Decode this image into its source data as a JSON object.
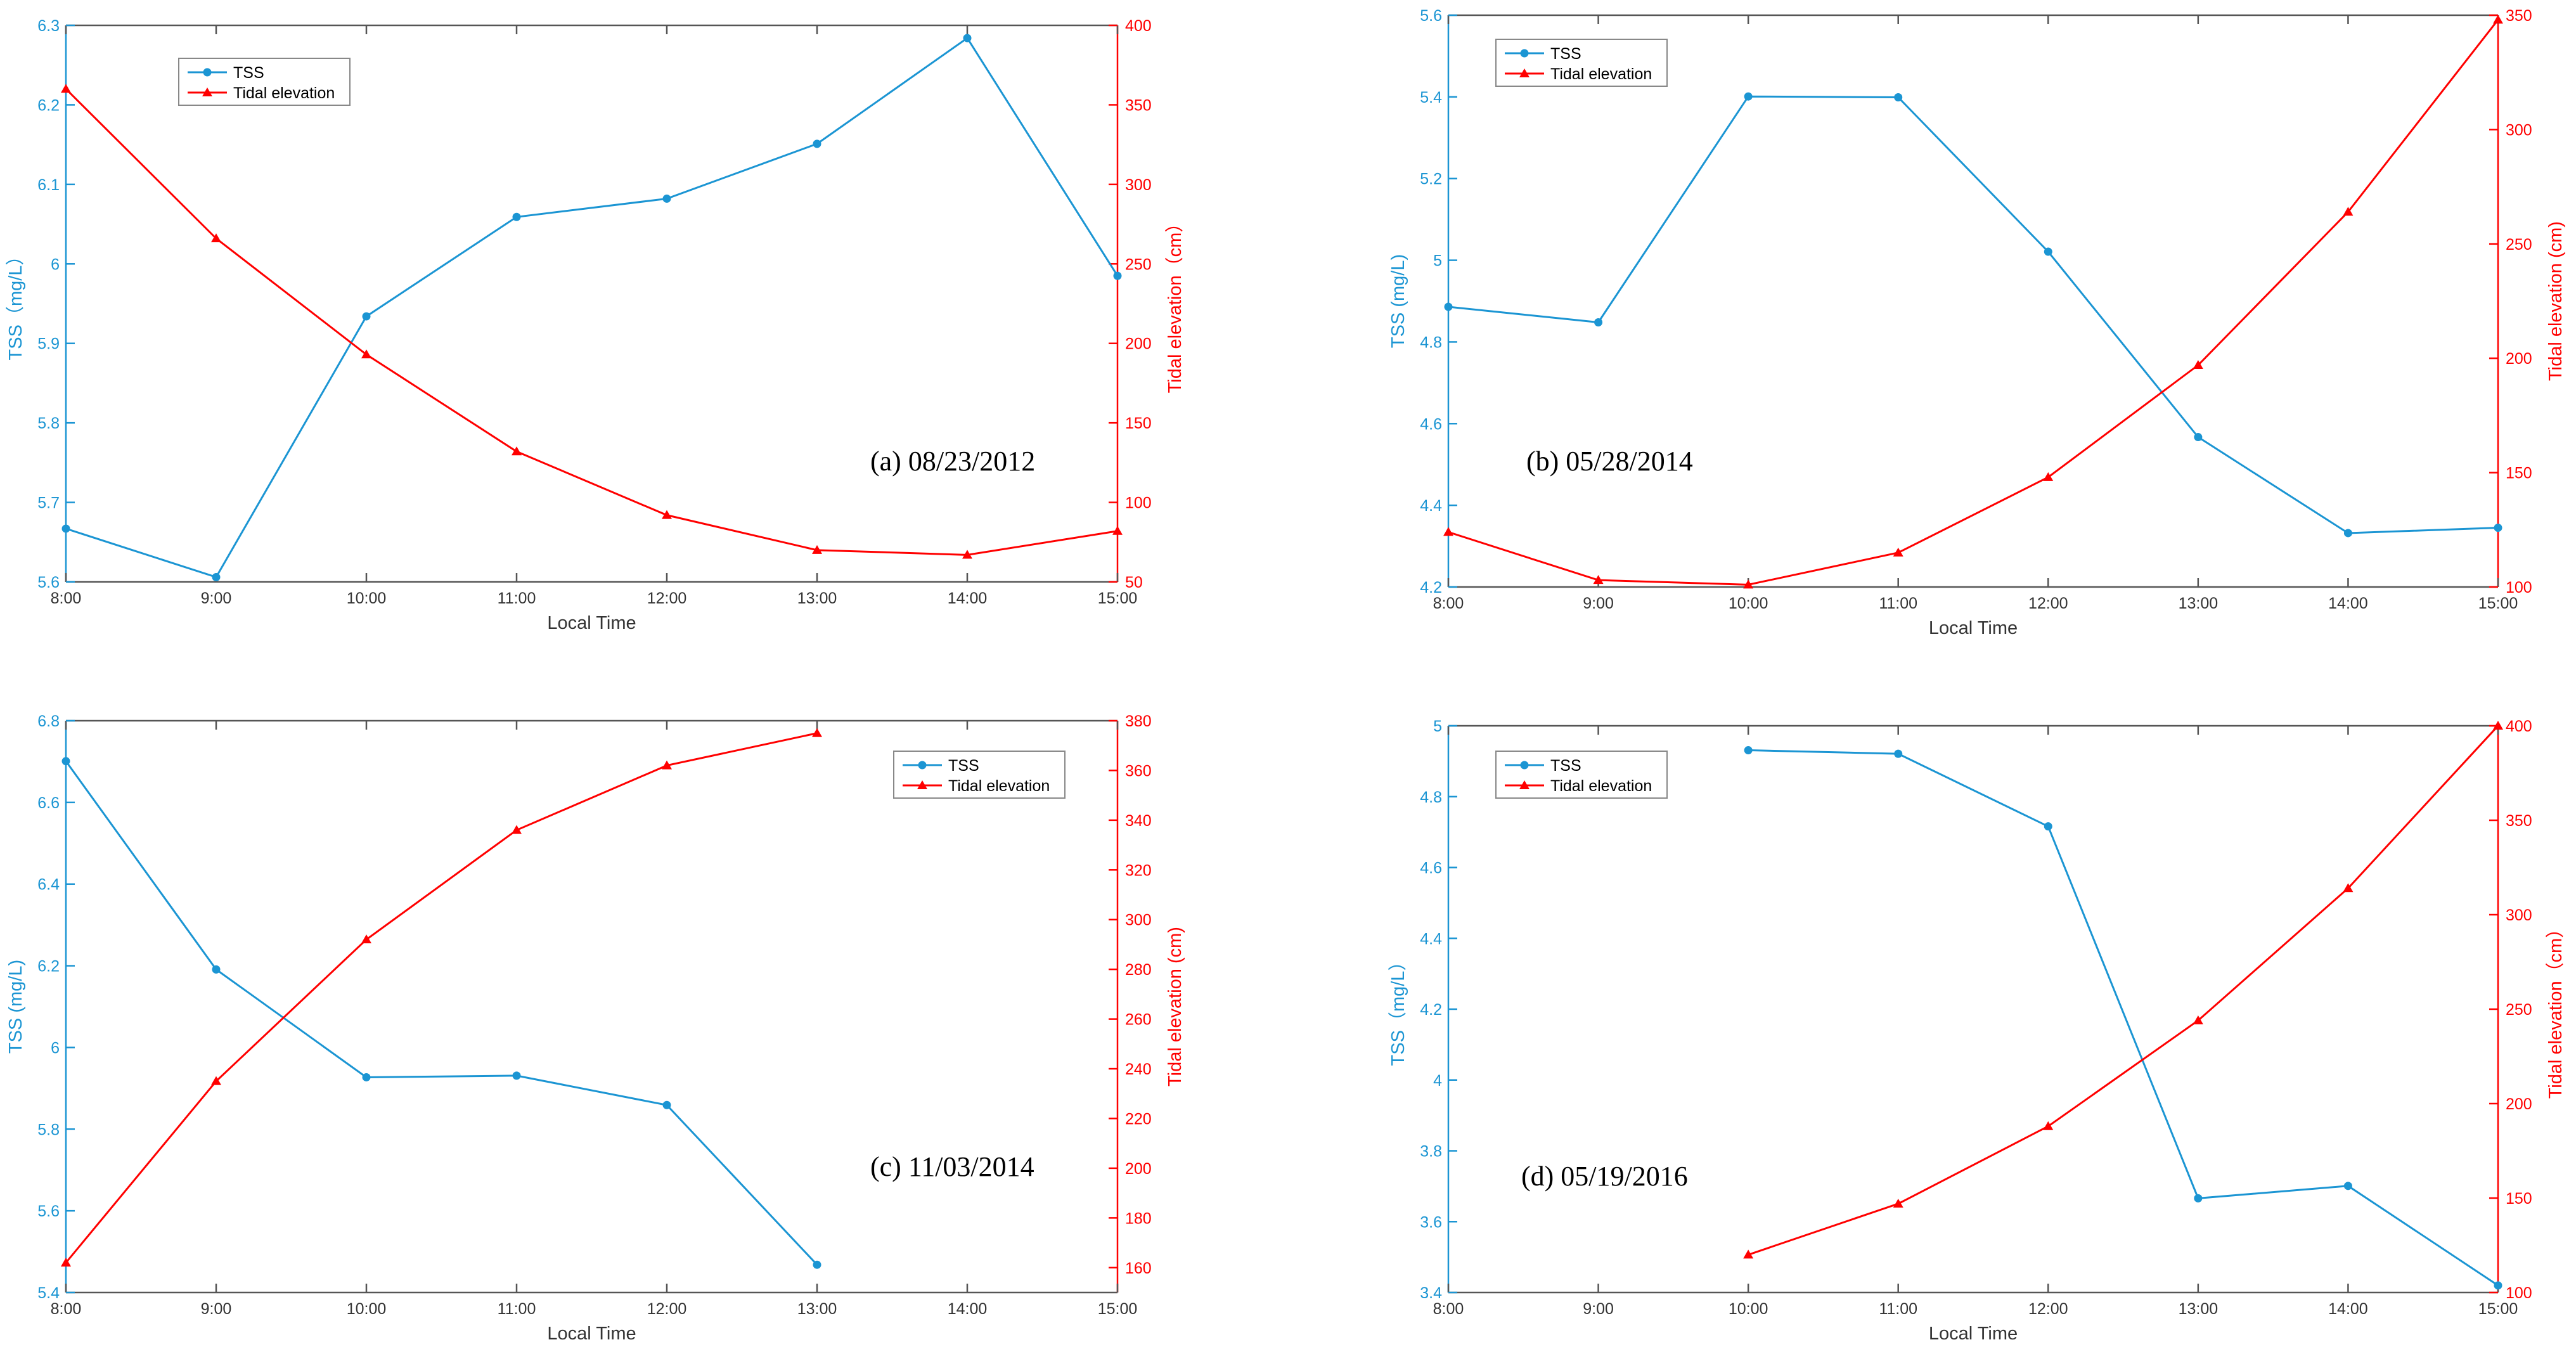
{
  "figure": {
    "colors": {
      "tss": "#1b95d3",
      "tide": "#ff0000",
      "axis": "#555555",
      "text": "#333333"
    }
  },
  "chart_data": [
    {
      "type": "line",
      "title": "(a) 08/23/2012",
      "xlabel": "Local Time",
      "ylabel_left": "TSS（mg/L）",
      "ylabel_right": "Tidal elevation（cm）",
      "x_ticks": [
        "8:00",
        "9:00",
        "10:00",
        "11:00",
        "12:00",
        "13:00",
        "14:00",
        "15:00"
      ],
      "y_left_range": [
        5.6,
        6.3
      ],
      "y_left_ticks": [
        "5.6",
        "5.7",
        "5.8",
        "5.9",
        "6",
        "6.1",
        "6.2",
        "6.3"
      ],
      "y_right_range": [
        50,
        400
      ],
      "y_right_ticks": [
        "50",
        "100",
        "150",
        "200",
        "250",
        "300",
        "350",
        "400"
      ],
      "legend_position": "top-left",
      "series": [
        {
          "name": "TSS",
          "axis": "left",
          "marker": "circle",
          "values": [
            5.667,
            5.606,
            5.934,
            6.059,
            6.082,
            6.151,
            6.284,
            5.985
          ]
        },
        {
          "name": "Tidal elevation",
          "axis": "right",
          "marker": "triangle",
          "values": [
            360,
            266,
            193,
            132,
            92,
            70,
            67,
            82
          ]
        }
      ]
    },
    {
      "type": "line",
      "title": "(b) 05/28/2014",
      "xlabel": "Local Time",
      "ylabel_left": "TSS (mg/L)",
      "ylabel_right": "Tidal elevation (cm)",
      "x_ticks": [
        "8:00",
        "9:00",
        "10:00",
        "11:00",
        "12:00",
        "13:00",
        "14:00",
        "15:00"
      ],
      "y_left_range": [
        4.2,
        5.6
      ],
      "y_left_ticks": [
        "4.2",
        "4.4",
        "4.6",
        "4.8",
        "5",
        "5.2",
        "5.4",
        "5.6"
      ],
      "y_right_range": [
        100,
        350
      ],
      "y_right_ticks": [
        "100",
        "150",
        "200",
        "250",
        "300",
        "350"
      ],
      "legend_position": "top-left",
      "series": [
        {
          "name": "TSS",
          "axis": "left",
          "marker": "circle",
          "values": [
            4.886,
            4.848,
            5.401,
            5.399,
            5.021,
            4.567,
            4.332,
            4.345
          ]
        },
        {
          "name": "Tidal elevation",
          "axis": "right",
          "marker": "triangle",
          "values": [
            124,
            103,
            101,
            115,
            148,
            197,
            264,
            348
          ]
        }
      ]
    },
    {
      "type": "line",
      "title": "(c) 11/03/2014",
      "xlabel": "Local Time",
      "ylabel_left": "TSS (mg/L)",
      "ylabel_right": "Tidal elevation (cm)",
      "x_ticks": [
        "8:00",
        "9:00",
        "10:00",
        "11:00",
        "12:00",
        "13:00",
        "14:00",
        "15:00"
      ],
      "y_left_range": [
        5.4,
        6.8
      ],
      "y_left_ticks": [
        "5.4",
        "5.6",
        "5.8",
        "6",
        "6.2",
        "6.4",
        "6.6",
        "6.8"
      ],
      "y_right_range": [
        150,
        380
      ],
      "y_right_ticks": [
        "160",
        "180",
        "200",
        "220",
        "240",
        "260",
        "280",
        "300",
        "320",
        "340",
        "360",
        "380"
      ],
      "legend_position": "top-right",
      "series": [
        {
          "name": "TSS",
          "axis": "left",
          "marker": "circle",
          "values": [
            6.701,
            6.191,
            5.927,
            5.931,
            5.859,
            5.468
          ]
        },
        {
          "name": "Tidal elevation",
          "axis": "right",
          "marker": "triangle",
          "values": [
            162,
            235,
            292,
            336,
            362,
            375
          ]
        }
      ]
    },
    {
      "type": "line",
      "title": "(d) 05/19/2016",
      "xlabel": "Local Time",
      "ylabel_left": "TSS（mg/L）",
      "ylabel_right": "Tidal elevation（cm）",
      "x_ticks": [
        "8:00",
        "9:00",
        "10:00",
        "11:00",
        "12:00",
        "13:00",
        "14:00",
        "15:00"
      ],
      "y_left_range": [
        3.4,
        5.0
      ],
      "y_left_ticks": [
        "3.4",
        "3.6",
        "3.8",
        "4",
        "4.2",
        "4.4",
        "4.6",
        "4.8",
        "5"
      ],
      "y_right_range": [
        100,
        400
      ],
      "y_right_ticks": [
        "100",
        "150",
        "200",
        "250",
        "300",
        "350",
        "400"
      ],
      "legend_position": "top-left",
      "series": [
        {
          "name": "TSS",
          "axis": "left",
          "marker": "circle",
          "values": [
            null,
            null,
            4.931,
            4.921,
            4.716,
            3.666,
            3.701,
            3.42
          ]
        },
        {
          "name": "Tidal elevation",
          "axis": "right",
          "marker": "triangle",
          "values": [
            null,
            null,
            120,
            147,
            188,
            244,
            314,
            400
          ]
        }
      ]
    }
  ]
}
